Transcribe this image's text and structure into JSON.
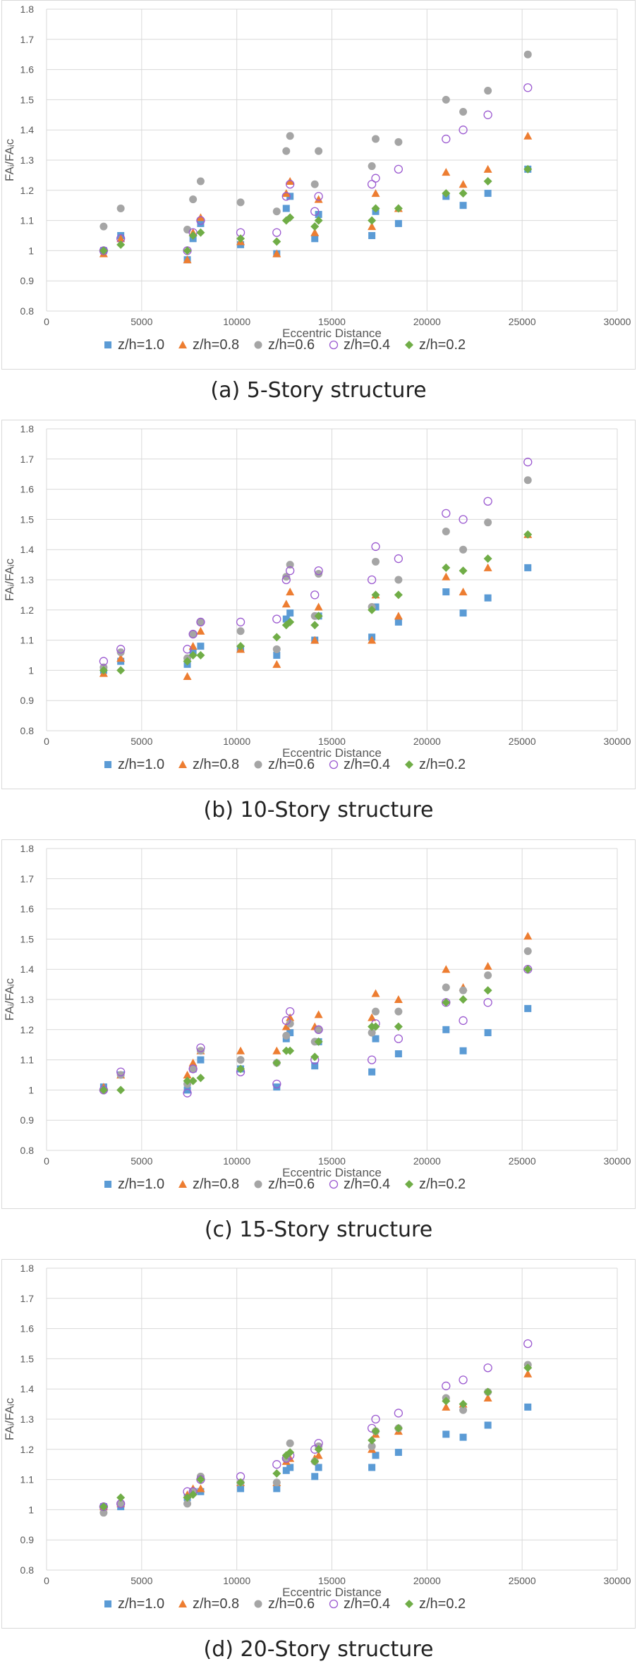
{
  "chart_data": [
    {
      "type": "scatter",
      "caption": "(a) 5-Story structure",
      "xlabel": "Eccentric Distance",
      "ylabel": "FAᵢ/FAᵢc",
      "xlim": [
        0,
        30000
      ],
      "ylim": [
        0.8,
        1.8
      ],
      "xticks": [
        "0",
        "5000",
        "10000",
        "15000",
        "20000",
        "25000",
        "30000"
      ],
      "yticks": [
        "0.8",
        "0.9",
        "1",
        "1.1",
        "1.2",
        "1.3",
        "1.4",
        "1.5",
        "1.6",
        "1.7",
        "1.8"
      ],
      "x": [
        3000,
        3900,
        7400,
        7700,
        8100,
        10200,
        12100,
        12600,
        12800,
        14100,
        14300,
        17100,
        17300,
        18500,
        21000,
        21900,
        23200,
        25300
      ],
      "series": [
        {
          "name": "z/h=1.0",
          "values": [
            1.0,
            1.05,
            0.97,
            1.04,
            1.09,
            1.02,
            0.99,
            1.14,
            1.18,
            1.04,
            1.12,
            1.05,
            1.13,
            1.09,
            1.18,
            1.15,
            1.19,
            1.27
          ]
        },
        {
          "name": "z/h=0.8",
          "values": [
            0.99,
            1.04,
            0.97,
            1.06,
            1.11,
            1.03,
            0.99,
            1.19,
            1.23,
            1.06,
            1.17,
            1.08,
            1.19,
            1.14,
            1.26,
            1.22,
            1.27,
            1.38
          ]
        },
        {
          "name": "z/h=0.6",
          "values": [
            1.08,
            1.14,
            1.07,
            1.17,
            1.23,
            1.16,
            1.13,
            1.33,
            1.38,
            1.22,
            1.33,
            1.28,
            1.37,
            1.36,
            1.5,
            1.46,
            1.53,
            1.65
          ]
        },
        {
          "name": "z/h=0.4",
          "values": [
            1.0,
            1.04,
            1.0,
            1.06,
            1.1,
            1.06,
            1.06,
            1.18,
            1.22,
            1.13,
            1.18,
            1.22,
            1.24,
            1.27,
            1.37,
            1.4,
            1.45,
            1.54
          ]
        },
        {
          "name": "z/h=0.2",
          "values": [
            1.0,
            1.02,
            1.0,
            1.05,
            1.06,
            1.04,
            1.03,
            1.1,
            1.11,
            1.08,
            1.1,
            1.1,
            1.14,
            1.14,
            1.19,
            1.19,
            1.23,
            1.27
          ]
        }
      ]
    },
    {
      "type": "scatter",
      "caption": "(b) 10-Story structure",
      "xlabel": "Eccentric Distance",
      "ylabel": "FAᵢ/FAᵢc",
      "xlim": [
        0,
        30000
      ],
      "ylim": [
        0.8,
        1.8
      ],
      "xticks": [
        "0",
        "5000",
        "10000",
        "15000",
        "20000",
        "25000",
        "30000"
      ],
      "yticks": [
        "0.8",
        "0.9",
        "1",
        "1.1",
        "1.2",
        "1.3",
        "1.4",
        "1.5",
        "1.6",
        "1.7",
        "1.8"
      ],
      "x": [
        3000,
        3900,
        7400,
        7700,
        8100,
        10200,
        12100,
        12600,
        12800,
        14100,
        14300,
        17100,
        17300,
        18500,
        21000,
        21900,
        23200,
        25300
      ],
      "series": [
        {
          "name": "z/h=1.0",
          "values": [
            1.0,
            1.03,
            1.02,
            1.06,
            1.08,
            1.07,
            1.05,
            1.17,
            1.19,
            1.1,
            1.18,
            1.11,
            1.21,
            1.16,
            1.26,
            1.19,
            1.24,
            1.34
          ]
        },
        {
          "name": "z/h=0.8",
          "values": [
            0.99,
            1.04,
            0.98,
            1.08,
            1.13,
            1.07,
            1.02,
            1.22,
            1.26,
            1.1,
            1.21,
            1.1,
            1.25,
            1.18,
            1.31,
            1.26,
            1.34,
            1.45
          ]
        },
        {
          "name": "z/h=0.6",
          "values": [
            1.01,
            1.06,
            1.04,
            1.12,
            1.16,
            1.13,
            1.07,
            1.31,
            1.35,
            1.18,
            1.32,
            1.21,
            1.36,
            1.3,
            1.46,
            1.4,
            1.49,
            1.63
          ]
        },
        {
          "name": "z/h=0.4",
          "values": [
            1.03,
            1.07,
            1.07,
            1.12,
            1.16,
            1.16,
            1.17,
            1.3,
            1.33,
            1.25,
            1.33,
            1.3,
            1.41,
            1.37,
            1.52,
            1.5,
            1.56,
            1.69
          ]
        },
        {
          "name": "z/h=0.2",
          "values": [
            1.0,
            1.0,
            1.03,
            1.05,
            1.05,
            1.08,
            1.11,
            1.15,
            1.16,
            1.15,
            1.18,
            1.2,
            1.25,
            1.25,
            1.34,
            1.33,
            1.37,
            1.45
          ]
        }
      ]
    },
    {
      "type": "scatter",
      "caption": "(c) 15-Story structure",
      "xlabel": "Eccentric Distance",
      "ylabel": "FAᵢ/FAᵢc",
      "xlim": [
        0,
        30000
      ],
      "ylim": [
        0.8,
        1.8
      ],
      "xticks": [
        "0",
        "5000",
        "10000",
        "15000",
        "20000",
        "25000",
        "30000"
      ],
      "yticks": [
        "0.8",
        "0.9",
        "1",
        "1.1",
        "1.2",
        "1.3",
        "1.4",
        "1.5",
        "1.6",
        "1.7",
        "1.8"
      ],
      "x": [
        3000,
        3900,
        7400,
        7700,
        8100,
        10200,
        12100,
        12600,
        12800,
        14100,
        14300,
        17100,
        17300,
        18500,
        21000,
        21900,
        23200,
        25300
      ],
      "series": [
        {
          "name": "z/h=1.0",
          "values": [
            1.01,
            1.05,
            1.0,
            1.07,
            1.1,
            1.07,
            1.01,
            1.17,
            1.19,
            1.08,
            1.16,
            1.06,
            1.17,
            1.12,
            1.2,
            1.13,
            1.19,
            1.27
          ]
        },
        {
          "name": "z/h=0.8",
          "values": [
            1.01,
            1.05,
            1.05,
            1.09,
            1.13,
            1.13,
            1.13,
            1.21,
            1.24,
            1.21,
            1.25,
            1.24,
            1.32,
            1.3,
            1.4,
            1.34,
            1.41,
            1.51
          ]
        },
        {
          "name": "z/h=0.6",
          "values": [
            1.0,
            1.05,
            1.02,
            1.07,
            1.13,
            1.1,
            1.09,
            1.18,
            1.22,
            1.16,
            1.2,
            1.19,
            1.26,
            1.26,
            1.34,
            1.33,
            1.38,
            1.46
          ]
        },
        {
          "name": "z/h=0.4",
          "values": [
            1.0,
            1.06,
            0.99,
            1.07,
            1.14,
            1.06,
            1.02,
            1.23,
            1.26,
            1.1,
            1.2,
            1.1,
            1.22,
            1.17,
            1.29,
            1.23,
            1.29,
            1.4
          ]
        },
        {
          "name": "z/h=0.2",
          "values": [
            1.0,
            1.0,
            1.03,
            1.03,
            1.04,
            1.07,
            1.09,
            1.13,
            1.13,
            1.11,
            1.16,
            1.21,
            1.21,
            1.21,
            1.29,
            1.3,
            1.33,
            1.4
          ]
        }
      ]
    },
    {
      "type": "scatter",
      "caption": "(d) 20-Story structure",
      "xlabel": "Eccentric Distance",
      "ylabel": "FAᵢ/FAᵢc",
      "xlim": [
        0,
        30000
      ],
      "ylim": [
        0.8,
        1.8
      ],
      "xticks": [
        "0",
        "5000",
        "10000",
        "15000",
        "20000",
        "25000",
        "30000"
      ],
      "yticks": [
        "0.8",
        "0.9",
        "1",
        "1.1",
        "1.2",
        "1.3",
        "1.4",
        "1.5",
        "1.6",
        "1.7",
        "1.8"
      ],
      "x": [
        3000,
        3900,
        7400,
        7700,
        8100,
        10200,
        12100,
        12600,
        12800,
        14100,
        14300,
        17100,
        17300,
        18500,
        21000,
        21900,
        23200,
        25300
      ],
      "series": [
        {
          "name": "z/h=1.0",
          "values": [
            1.01,
            1.01,
            1.04,
            1.06,
            1.06,
            1.07,
            1.07,
            1.13,
            1.14,
            1.11,
            1.14,
            1.14,
            1.18,
            1.19,
            1.25,
            1.24,
            1.28,
            1.34
          ]
        },
        {
          "name": "z/h=0.8",
          "values": [
            1.01,
            1.02,
            1.05,
            1.07,
            1.07,
            1.09,
            1.09,
            1.16,
            1.17,
            1.17,
            1.18,
            1.2,
            1.25,
            1.26,
            1.34,
            1.35,
            1.37,
            1.45
          ]
        },
        {
          "name": "z/h=0.6",
          "values": [
            0.99,
            1.02,
            1.02,
            1.06,
            1.11,
            1.09,
            1.09,
            1.17,
            1.22,
            1.16,
            1.21,
            1.21,
            1.26,
            1.27,
            1.37,
            1.33,
            1.39,
            1.48
          ]
        },
        {
          "name": "z/h=0.4",
          "values": [
            1.01,
            1.02,
            1.06,
            1.06,
            1.1,
            1.11,
            1.15,
            1.17,
            1.18,
            1.2,
            1.22,
            1.27,
            1.3,
            1.32,
            1.41,
            1.43,
            1.47,
            1.55
          ]
        },
        {
          "name": "z/h=0.2",
          "values": [
            1.01,
            1.04,
            1.04,
            1.05,
            1.1,
            1.09,
            1.12,
            1.18,
            1.19,
            1.16,
            1.2,
            1.23,
            1.26,
            1.27,
            1.36,
            1.35,
            1.39,
            1.47
          ]
        }
      ]
    }
  ],
  "style": {
    "series_colors": [
      "#5b9bd5",
      "#ed7d31",
      "#a5a5a5",
      "#9b59d0",
      "#70ad47"
    ],
    "series_markers": [
      "square",
      "triangle",
      "circle",
      "open-circle",
      "diamond"
    ],
    "grid_color": "#d9d9d9",
    "text_color": "#595959"
  }
}
